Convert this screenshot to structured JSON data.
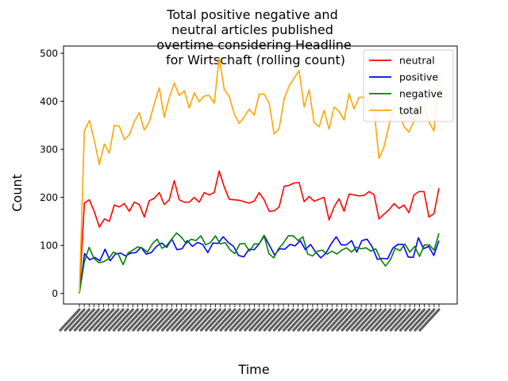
{
  "chart_data": {
    "type": "line",
    "title_lines": [
      "Total positive negative and",
      "neutral articles published",
      "overtime considering Headline",
      "for Wirtschaft (rolling count)"
    ],
    "xlabel": "Time",
    "ylabel": "Count",
    "ylim": [
      -22,
      515
    ],
    "yticks": [
      0,
      100,
      200,
      300,
      400,
      500
    ],
    "x_tick_label_pattern": "week-like labels, illegible (overlapping)",
    "legend_position": "top-right",
    "grid": false,
    "series": [
      {
        "name": "neutral",
        "color": "#ff0000",
        "values": [
          0,
          188,
          195,
          170,
          138,
          155,
          150,
          184,
          180,
          187,
          171,
          190,
          185,
          159,
          193,
          198,
          210,
          185,
          195,
          235,
          195,
          190,
          190,
          200,
          190,
          210,
          205,
          210,
          255,
          222,
          196,
          195,
          194,
          191,
          188,
          192,
          210,
          195,
          171,
          172,
          180,
          223,
          225,
          230,
          231,
          191,
          202,
          192,
          196,
          200,
          153,
          180,
          197,
          171,
          207,
          205,
          203,
          204,
          212,
          206,
          155,
          165,
          174,
          187,
          177,
          184,
          168,
          205,
          212,
          212,
          159,
          166,
          219
        ]
      },
      {
        "name": "positive",
        "color": "#0000ff",
        "values": [
          0,
          83,
          70,
          75,
          68,
          92,
          68,
          82,
          84,
          78,
          84,
          85,
          96,
          82,
          85,
          98,
          105,
          96,
          113,
          91,
          93,
          110,
          98,
          106,
          102,
          85,
          105,
          104,
          118,
          106,
          98,
          79,
          76,
          92,
          91,
          103,
          120,
          100,
          80,
          93,
          92,
          102,
          99,
          110,
          91,
          102,
          86,
          74,
          84,
          103,
          118,
          101,
          101,
          110,
          86,
          110,
          113,
          97,
          71,
          73,
          72,
          94,
          102,
          102,
          76,
          75,
          116,
          93,
          98,
          79,
          110
        ]
      },
      {
        "name": "negative",
        "color": "#008000",
        "values": [
          0,
          65,
          96,
          73,
          64,
          66,
          72,
          86,
          82,
          60,
          84,
          90,
          97,
          94,
          86,
          103,
          113,
          94,
          100,
          113,
          126,
          117,
          104,
          113,
          110,
          120,
          101,
          106,
          120,
          103,
          106,
          91,
          83,
          103,
          104,
          88,
          103,
          103,
          121,
          83,
          74,
          93,
          105,
          120,
          120,
          110,
          118,
          82,
          78,
          88,
          90,
          82,
          88,
          82,
          90,
          95,
          86,
          96,
          93,
          95,
          88,
          93,
          71,
          57,
          70,
          94,
          89,
          103,
          86,
          98,
          77,
          101,
          101,
          90,
          125
        ]
      },
      {
        "name": "total",
        "color": "#ffa500",
        "values": [
          0,
          338,
          360,
          318,
          268,
          311,
          292,
          350,
          348,
          320,
          330,
          358,
          376,
          340,
          357,
          395,
          428,
          367,
          408,
          438,
          412,
          422,
          386,
          418,
          399,
          411,
          412,
          396,
          491,
          425,
          410,
          374,
          354,
          367,
          384,
          371,
          415,
          415,
          396,
          332,
          343,
          405,
          432,
          448,
          464,
          388,
          424,
          356,
          347,
          381,
          342,
          388,
          379,
          361,
          416,
          384,
          408,
          409,
          408,
          383,
          281,
          305,
          350,
          387,
          381,
          347,
          336,
          359,
          394,
          390,
          357,
          338,
          455
        ]
      }
    ]
  }
}
